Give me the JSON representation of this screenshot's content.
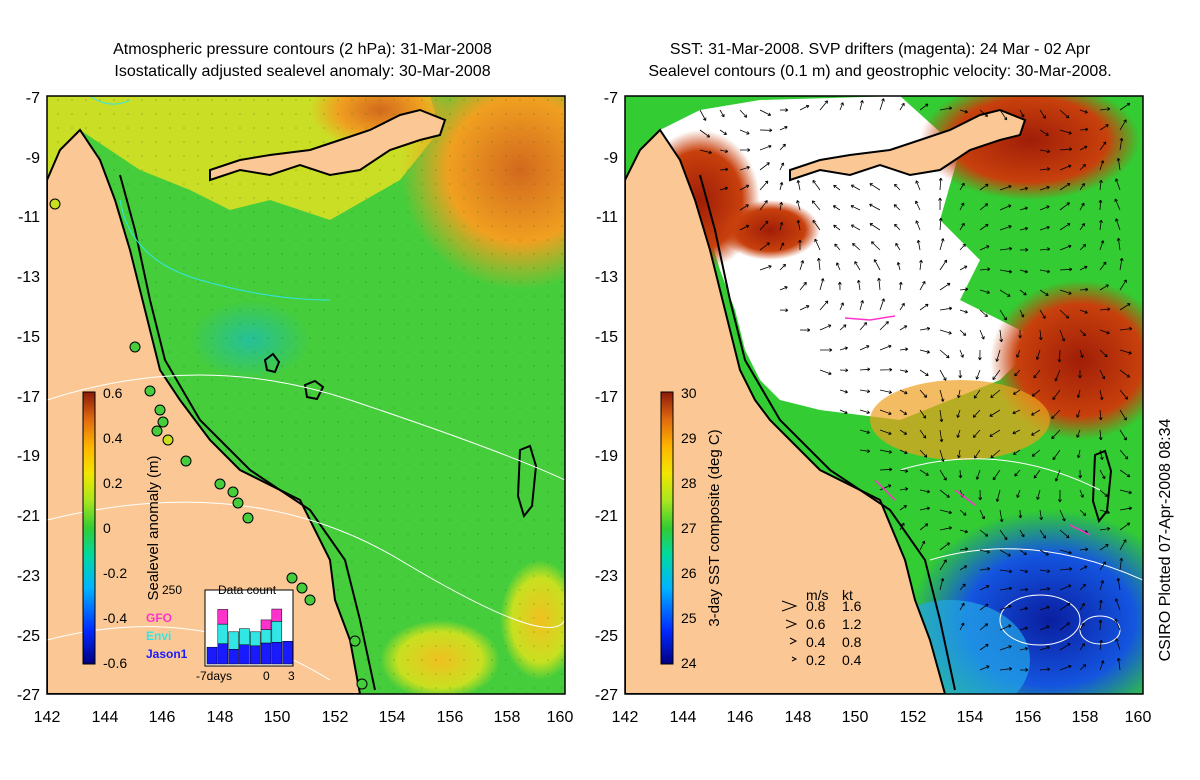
{
  "left_panel": {
    "title_line1": "Atmospheric pressure contours (2 hPa): 31-Mar-2008",
    "title_line2": "Isostatically adjusted sealevel anomaly: 30-Mar-2008",
    "colorbar": {
      "label": "Sealevel anomaly (m)",
      "ticks": [
        "0.6",
        "0.4",
        "0.2",
        "0",
        "-0.2",
        "-0.4",
        "-0.6"
      ]
    },
    "inset": {
      "title": "Data count",
      "ymax": "250",
      "legend": [
        {
          "label": "GFO",
          "color": "#ff33cc"
        },
        {
          "label": "Envi",
          "color": "#33e6e6"
        },
        {
          "label": "Jason1",
          "color": "#1a1aff"
        }
      ],
      "xlabels": [
        "-7days",
        "0",
        "3"
      ],
      "bars": [
        {
          "jason": 48,
          "envi": 0,
          "gfo": 0
        },
        {
          "jason": 58,
          "envi": 56,
          "gfo": 42
        },
        {
          "jason": 42,
          "envi": 50,
          "gfo": 0
        },
        {
          "jason": 55,
          "envi": 46,
          "gfo": 0
        },
        {
          "jason": 52,
          "envi": 40,
          "gfo": 0
        },
        {
          "jason": 60,
          "envi": 38,
          "gfo": 28
        },
        {
          "jason": 62,
          "envi": 60,
          "gfo": 35
        },
        {
          "jason": 65,
          "envi": 0,
          "gfo": 0
        }
      ]
    }
  },
  "right_panel": {
    "title_line1": "SST: 31-Mar-2008. SVP drifters (magenta): 24 Mar - 02 Apr",
    "title_line2": "Sealevel contours (0.1 m) and geostrophic velocity: 30-Mar-2008.",
    "colorbar": {
      "label": "3-day SST composite (deg C)",
      "ticks": [
        "30",
        "29",
        "28",
        "27",
        "26",
        "25",
        "24"
      ]
    },
    "velocity_legend": {
      "header_ms": "m/s",
      "header_kt": "kt",
      "rows": [
        {
          "ms": "0.8",
          "kt": "1.6"
        },
        {
          "ms": "0.6",
          "kt": "1.2"
        },
        {
          "ms": "0.4",
          "kt": "0.8"
        },
        {
          "ms": "0.2",
          "kt": "0.4"
        }
      ]
    }
  },
  "axes": {
    "y_ticks": [
      "-7",
      "-9",
      "-11",
      "-13",
      "-15",
      "-17",
      "-19",
      "-21",
      "-23",
      "-25",
      "-27"
    ],
    "x_ticks": [
      "142",
      "144",
      "146",
      "148",
      "150",
      "152",
      "154",
      "156",
      "158",
      "160"
    ]
  },
  "footer": {
    "credit": "CSIRO Plotted 07-Apr-2008 08:34"
  },
  "colors": {
    "land": "#fbc895",
    "coast": "#000000",
    "sla_background": "#45cd3c",
    "sst_land_background": "#fbc895"
  }
}
